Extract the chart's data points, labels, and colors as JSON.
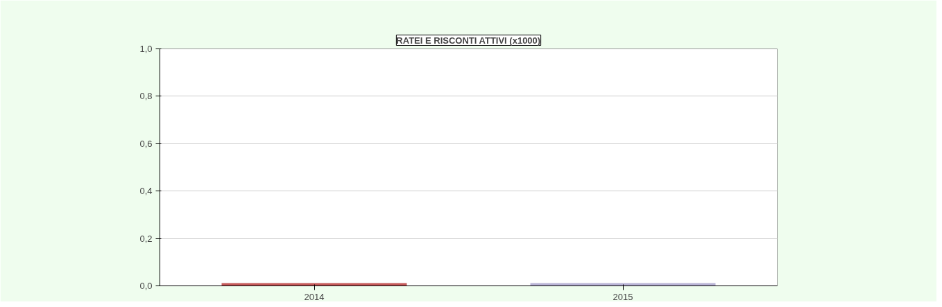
{
  "chart_data": {
    "type": "bar",
    "title": "RATEI E RISCONTI ATTIVI (x1000)",
    "categories": [
      "2014",
      "2015"
    ],
    "values": [
      0,
      0
    ],
    "colors": [
      "#c55a5a",
      "#b9b3d6"
    ],
    "ylim": [
      0,
      1
    ],
    "yticks": [
      {
        "value": 0,
        "label": "0,0"
      },
      {
        "value": 0.2,
        "label": "0,2"
      },
      {
        "value": 0.4,
        "label": "0,4"
      },
      {
        "value": 0.6,
        "label": "0,6"
      },
      {
        "value": 0.8,
        "label": "0,8"
      },
      {
        "value": 1,
        "label": "1,0"
      }
    ],
    "grid": "y"
  }
}
